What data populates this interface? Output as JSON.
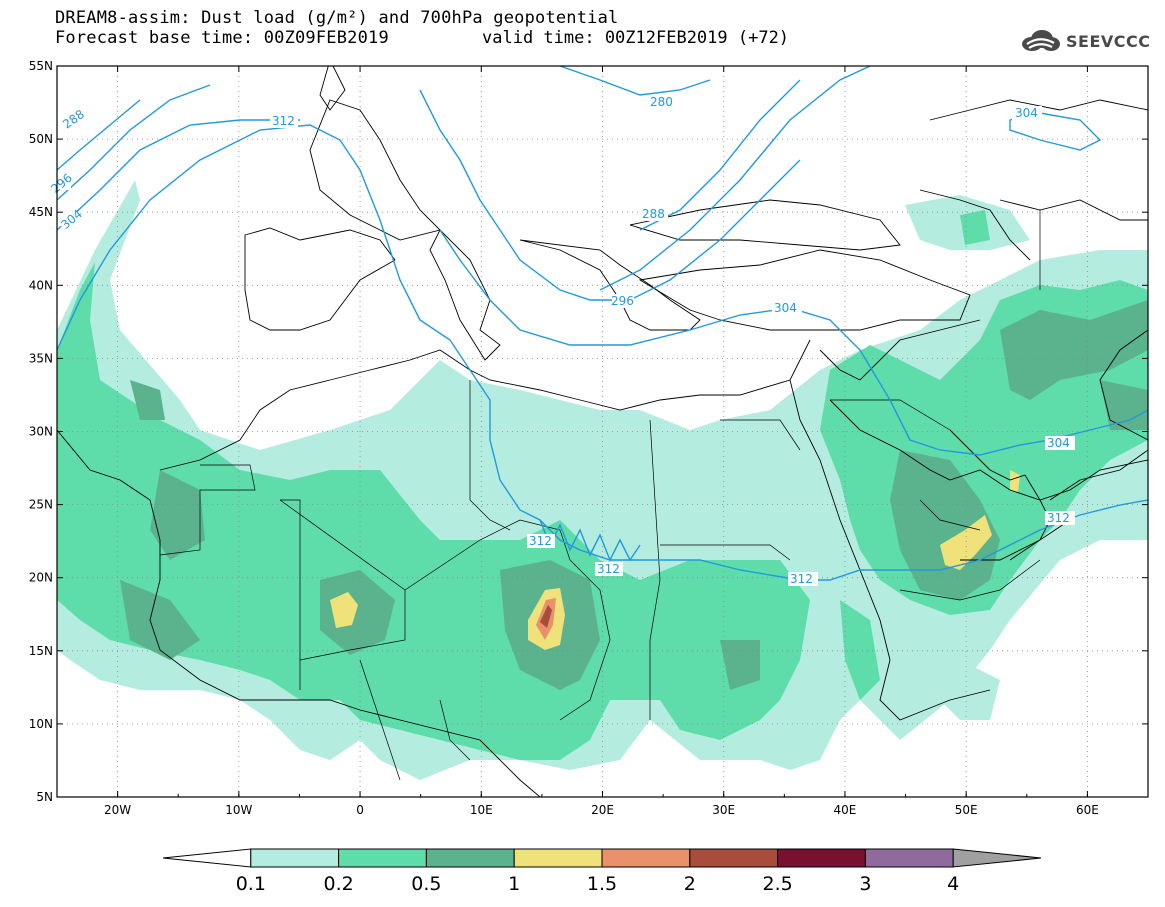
{
  "header": {
    "title_line1": "DREAM8-assim: Dust load (g/m²) and 700hPa geopotential",
    "title_line2_left": "Forecast base time: 00Z09FEB2019",
    "title_line2_right": "valid time: 00Z12FEB2019 (+72)",
    "logo_text": "SEEVCCC",
    "logo_icon": "cloud-icon"
  },
  "map": {
    "projection": "cylindrical",
    "lon_range": [
      -25,
      65
    ],
    "lat_range": [
      5,
      55
    ],
    "lon_ticks": [
      "20W",
      "10W",
      "0",
      "10E",
      "20E",
      "30E",
      "40E",
      "50E",
      "60E"
    ],
    "lat_ticks": [
      "55N",
      "50N",
      "45N",
      "40N",
      "35N",
      "30N",
      "25N",
      "20N",
      "15N",
      "10N",
      "5N"
    ],
    "grid": "dotted"
  },
  "isolines": {
    "labels": [
      "288",
      "296",
      "304",
      "312",
      "280",
      "304",
      "288",
      "296",
      "304",
      "304",
      "312",
      "312",
      "312",
      "312"
    ],
    "color": "#2299dd"
  },
  "colorbar": {
    "levels": [
      "0.1",
      "0.2",
      "0.5",
      "1",
      "1.5",
      "2",
      "2.5",
      "3",
      "4"
    ],
    "colors": [
      "#ffffff",
      "#b4ede0",
      "#5edcaa",
      "#5ab38c",
      "#f0e27a",
      "#e8916a",
      "#a84c3c",
      "#7a1030",
      "#8f6a9c",
      "#a0a0a0"
    ]
  }
}
